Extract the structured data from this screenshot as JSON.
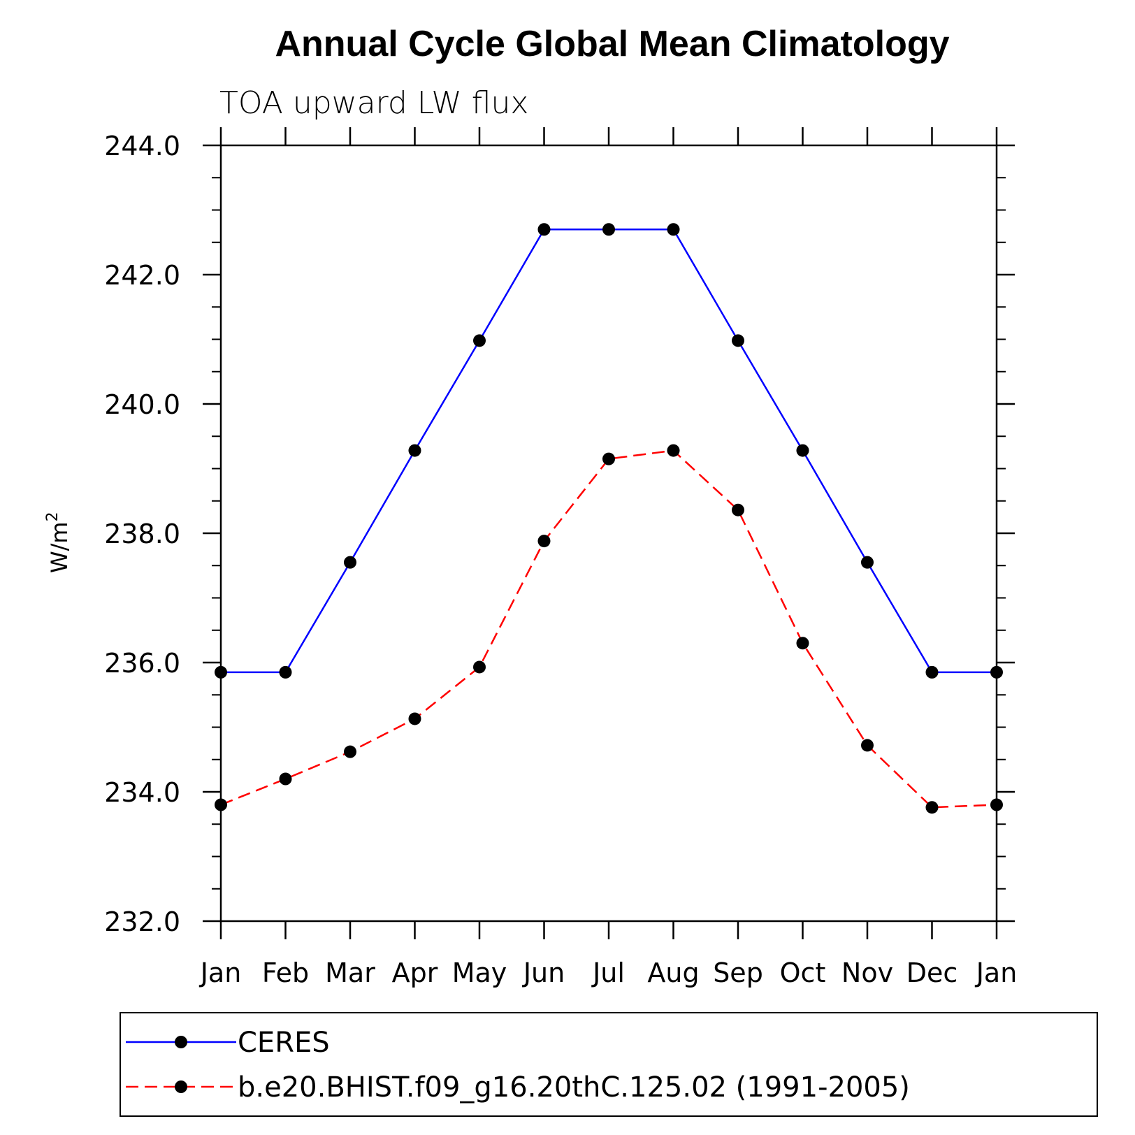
{
  "chart_data": {
    "type": "line",
    "title": "Annual Cycle Global Mean Climatology",
    "subtitle": "TOA upward LW flux",
    "ylabel": "W/m",
    "ylabel_sup": "2",
    "xlabel": "",
    "categories": [
      "Jan",
      "Feb",
      "Mar",
      "Apr",
      "May",
      "Jun",
      "Jul",
      "Aug",
      "Sep",
      "Oct",
      "Nov",
      "Dec",
      "Jan"
    ],
    "ylim": [
      232.0,
      244.0
    ],
    "yticks": [
      "232.0",
      "234.0",
      "236.0",
      "238.0",
      "240.0",
      "242.0",
      "244.0"
    ],
    "grid": false,
    "legend_position": "bottom",
    "series": [
      {
        "name": "CERES",
        "color": "#0000ff",
        "dashed": false,
        "marker": "filled-circle",
        "values": [
          235.85,
          235.85,
          237.55,
          239.28,
          240.98,
          242.7,
          242.7,
          242.7,
          240.98,
          239.28,
          237.55,
          235.85,
          235.85
        ]
      },
      {
        "name": "b.e20.BHIST.f09_g16.20thC.125.02 (1991-2005)",
        "color": "#ff0000",
        "dashed": true,
        "marker": "filled-circle",
        "values": [
          233.8,
          234.2,
          234.62,
          235.13,
          235.93,
          237.88,
          239.15,
          239.28,
          238.36,
          236.3,
          234.72,
          233.76,
          233.8
        ]
      }
    ]
  }
}
